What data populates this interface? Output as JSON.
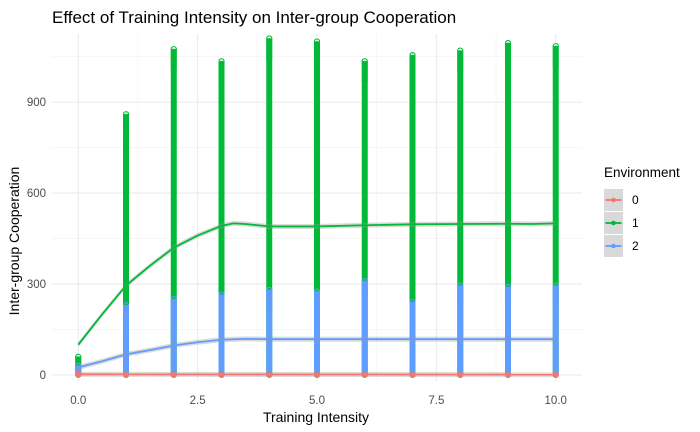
{
  "chart_data": {
    "type": "scatter",
    "title": "Effect of Training Intensity on Inter-group Cooperation",
    "xlabel": "Training Intensity",
    "ylabel": "Inter-group Cooperation",
    "xlim": [
      -0.55,
      10.55
    ],
    "ylim": [
      -20,
      1125
    ],
    "x_ticks": [
      0.0,
      2.5,
      5.0,
      7.5,
      10.0
    ],
    "x_tick_labels": [
      "0.0",
      "2.5",
      "5.0",
      "7.5",
      "10.0"
    ],
    "y_ticks": [
      0,
      300,
      600,
      900
    ],
    "y_tick_labels": [
      "0",
      "300",
      "600",
      "900"
    ],
    "grid": true,
    "legend": {
      "title": "Environment",
      "position": "right",
      "entries": [
        {
          "label": "0",
          "color": "#F8766D"
        },
        {
          "label": "1",
          "color": "#00BA38"
        },
        {
          "label": "2",
          "color": "#619CFF"
        }
      ]
    },
    "point_series": [
      {
        "name": "0",
        "color": "#F8766D",
        "x": [
          0,
          1,
          2,
          3,
          4,
          5,
          6,
          7,
          8,
          9,
          10
        ],
        "min": [
          0,
          0,
          0,
          0,
          0,
          0,
          0,
          0,
          0,
          0,
          0
        ],
        "max": [
          5,
          0,
          0,
          0,
          0,
          0,
          0,
          0,
          0,
          0,
          0
        ]
      },
      {
        "name": "1",
        "color": "#00BA38",
        "x": [
          0,
          1,
          2,
          3,
          4,
          5,
          6,
          7,
          8,
          9,
          10
        ],
        "min": [
          0,
          0,
          0,
          0,
          0,
          0,
          0,
          0,
          0,
          0,
          0
        ],
        "max": [
          60,
          860,
          1075,
          1035,
          1110,
          1100,
          1035,
          1055,
          1070,
          1095,
          1085
        ]
      },
      {
        "name": "2",
        "color": "#619CFF",
        "x": [
          0,
          1,
          2,
          3,
          4,
          5,
          6,
          7,
          8,
          9,
          10
        ],
        "min": [
          0,
          0,
          0,
          0,
          0,
          0,
          0,
          0,
          0,
          0,
          0
        ],
        "max": [
          30,
          230,
          250,
          265,
          280,
          275,
          310,
          240,
          295,
          290,
          295
        ]
      }
    ],
    "smooth_series": [
      {
        "name": "0",
        "color": "#F8766D",
        "x": [
          0,
          10
        ],
        "y": [
          2,
          1
        ]
      },
      {
        "name": "1",
        "color": "#00BA38",
        "x": [
          0,
          0.5,
          1,
          1.5,
          2,
          2.5,
          3,
          3.25,
          3.5,
          4,
          5,
          6,
          7,
          8,
          9,
          9.5,
          10
        ],
        "y": [
          100,
          200,
          295,
          360,
          420,
          460,
          492,
          500,
          498,
          490,
          490,
          494,
          497,
          498,
          499,
          498,
          500
        ]
      },
      {
        "name": "2",
        "color": "#619CFF",
        "x": [
          0,
          0.5,
          1,
          1.5,
          2,
          2.5,
          3,
          3.5,
          4,
          5,
          6,
          7,
          8,
          9,
          10
        ],
        "y": [
          25,
          45,
          68,
          82,
          97,
          108,
          116,
          119,
          118,
          118,
          118,
          118,
          118,
          118,
          118
        ]
      }
    ]
  }
}
